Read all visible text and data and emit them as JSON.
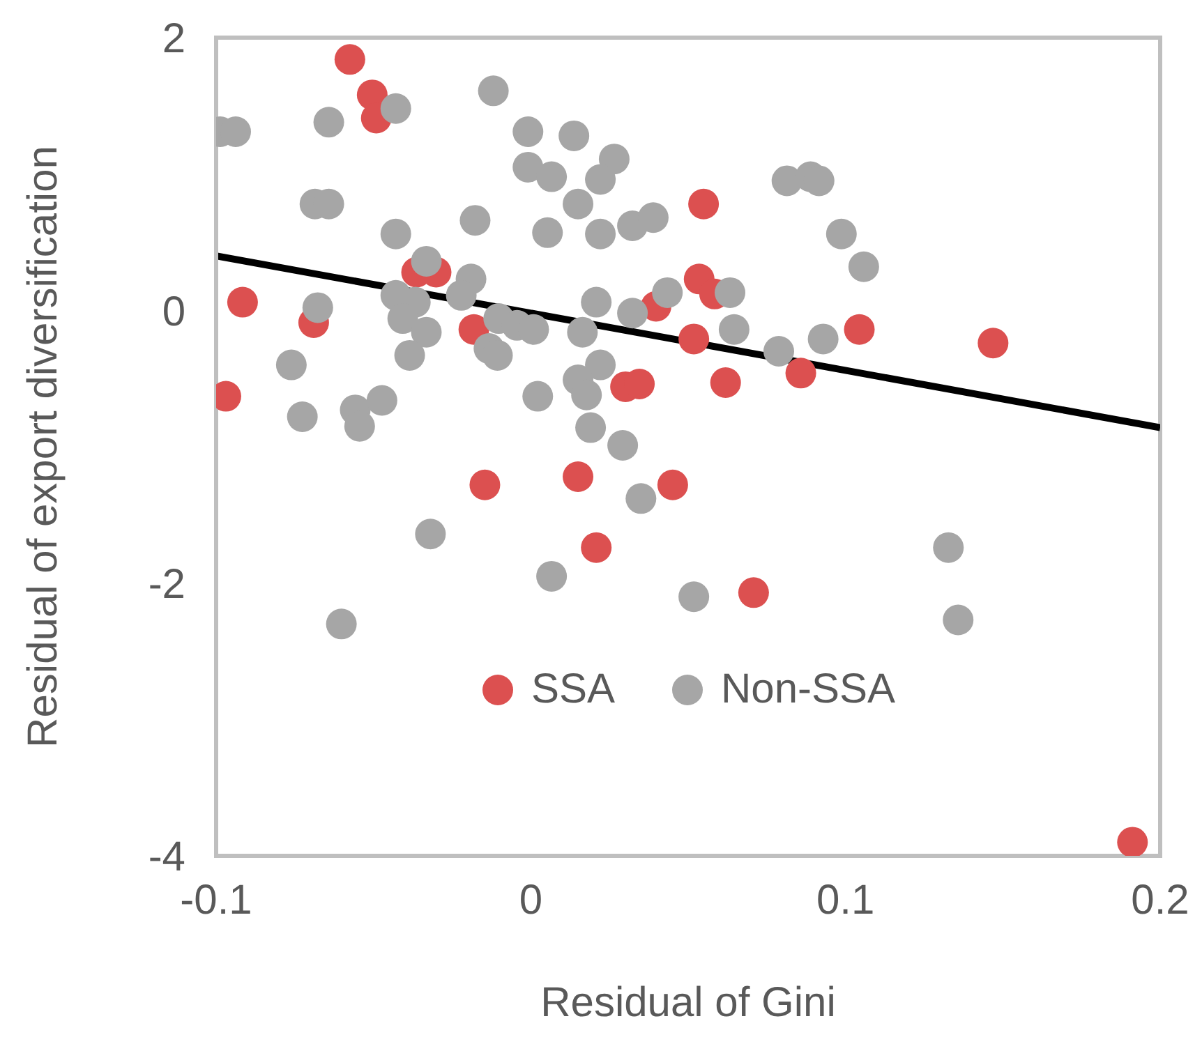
{
  "chart_data": {
    "type": "scatter",
    "xlabel": "Residual of Gini",
    "ylabel": "Residual of export diversification",
    "xlim": [
      -0.1,
      0.2
    ],
    "xticks": [
      -0.1,
      0,
      0.1,
      0.2
    ],
    "ylim": [
      -4,
      2
    ],
    "yticks": [
      -4,
      -2,
      0,
      2
    ],
    "grid": false,
    "legend": "bottom",
    "marker": "circle",
    "series": [
      {
        "name": "SSA",
        "color": "#dc5050",
        "x": [
          -0.0575,
          -0.0504,
          -0.0491,
          -0.0916,
          -0.069,
          -0.0969,
          -0.0363,
          -0.0301,
          -0.0181,
          -0.0146,
          0.015,
          0.0208,
          0.0301,
          0.0345,
          0.0398,
          0.0451,
          0.0549,
          0.0535,
          0.0584,
          0.0518,
          0.0619,
          0.0708,
          0.0858,
          0.1044,
          0.1469,
          0.1912
        ],
        "values": [
          1.84,
          1.58,
          1.41,
          0.06,
          -0.09,
          -0.63,
          0.28,
          0.28,
          -0.14,
          -1.28,
          -1.22,
          -1.74,
          -0.56,
          -0.54,
          0.03,
          -1.28,
          0.78,
          0.23,
          0.12,
          -0.21,
          -0.53,
          -2.07,
          -0.46,
          -0.14,
          -0.24,
          -3.9
        ]
      },
      {
        "name": "Non-SSA",
        "color": "#a6a6a6",
        "x": [
          -0.0987,
          -0.0938,
          -0.0642,
          -0.0429,
          -0.0119,
          -0.0009,
          0.0137,
          0.0265,
          -0.0009,
          0.0066,
          0.0221,
          -0.0686,
          -0.0642,
          0.015,
          -0.0429,
          -0.0177,
          0.0053,
          0.0221,
          0.0323,
          0.0389,
          -0.0332,
          -0.019,
          -0.0221,
          -0.0429,
          -0.0367,
          -0.0407,
          -0.0332,
          -0.0385,
          -0.0677,
          -0.0761,
          -0.0726,
          -0.0558,
          -0.0544,
          -0.0473,
          -0.0102,
          -0.0044,
          -0.0133,
          -0.0106,
          0.0009,
          0.0022,
          0.0164,
          0.0208,
          0.0323,
          0.0434,
          0.0221,
          0.015,
          0.0177,
          0.019,
          0.0292,
          0.035,
          -0.0319,
          0.0066,
          -0.0602,
          0.0518,
          0.0814,
          0.0889,
          0.0916,
          0.0987,
          0.1058,
          0.0633,
          0.0646,
          0.0788,
          0.0929,
          0.1327,
          0.1358
        ],
        "values": [
          1.31,
          1.31,
          1.38,
          1.48,
          1.61,
          1.31,
          1.28,
          1.11,
          1.05,
          0.98,
          0.96,
          0.78,
          0.78,
          0.78,
          0.56,
          0.66,
          0.57,
          0.56,
          0.62,
          0.68,
          0.36,
          0.23,
          0.11,
          0.11,
          0.06,
          -0.06,
          -0.16,
          -0.33,
          0.02,
          -0.4,
          -0.78,
          -0.73,
          -0.85,
          -0.66,
          -0.06,
          -0.11,
          -0.28,
          -0.33,
          -0.14,
          -0.63,
          -0.16,
          0.06,
          -0.02,
          0.13,
          -0.4,
          -0.51,
          -0.62,
          -0.86,
          -0.99,
          -1.38,
          -1.64,
          -1.95,
          -2.3,
          -2.1,
          0.95,
          0.98,
          0.95,
          0.56,
          0.32,
          0.13,
          -0.14,
          -0.3,
          -0.21,
          -1.74,
          -2.27
        ]
      },
      {
        "type": "line",
        "marker": "none",
        "color": "#000000",
        "x": [
          -0.1,
          0.2
        ],
        "values": [
          0.4,
          -0.86
        ]
      }
    ]
  }
}
